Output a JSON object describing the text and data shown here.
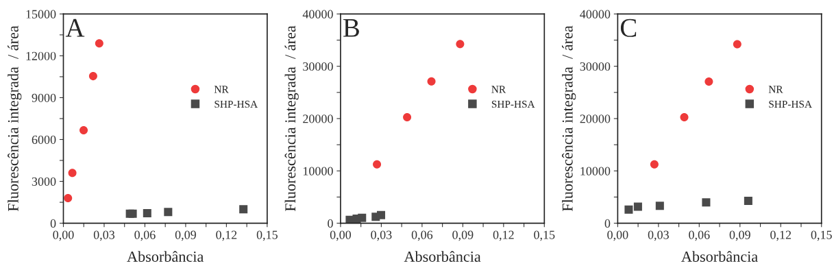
{
  "chart_data": [
    {
      "type": "scatter",
      "xlabel": "Absorbância",
      "ylabel": "Fluorescência integrada  / área",
      "annotations": [
        "A"
      ],
      "legend": "center right",
      "grid": false,
      "xlim": [
        0,
        0.15
      ],
      "xticks": [
        {
          "value": 0,
          "label": "0,00"
        },
        {
          "value": 0.015,
          "label": null
        },
        {
          "value": 0.03,
          "label": "0,03"
        },
        {
          "value": 0.045,
          "label": null
        },
        {
          "value": 0.06,
          "label": "0,06"
        },
        {
          "value": 0.075,
          "label": null
        },
        {
          "value": 0.09,
          "label": "0,09"
        },
        {
          "value": 0.105,
          "label": null
        },
        {
          "value": 0.12,
          "label": "0,12"
        },
        {
          "value": 0.135,
          "label": null
        },
        {
          "value": 0.15,
          "label": "0,15"
        }
      ],
      "ylim": [
        0,
        15000
      ],
      "yticks": [
        0,
        {
          "value": 1500,
          "label": null
        },
        3000,
        {
          "value": 4500,
          "label": null
        },
        6000,
        {
          "value": 7500,
          "label": null
        },
        9000,
        {
          "value": 10500,
          "label": null
        },
        12000,
        {
          "value": 13500,
          "label": null
        },
        15000
      ],
      "series": [
        {
          "name": "NR",
          "color": "#ee3a3a",
          "marker": "circle",
          "x": [
            0.0034,
            0.0066,
            0.0149,
            0.0219,
            0.0264
          ],
          "values": [
            1800,
            3600,
            6660,
            10540,
            12890
          ]
        },
        {
          "name": "SHP-HSA",
          "color": "#4a4a4a",
          "marker": "square",
          "x": [
            0.049,
            0.051,
            0.0617,
            0.0771,
            0.1325
          ],
          "values": [
            680,
            680,
            720,
            800,
            1000
          ]
        }
      ]
    },
    {
      "type": "scatter",
      "xlabel": "Absorbância",
      "ylabel": "Fluorescência integrada  / área",
      "annotations": [
        "B"
      ],
      "legend": "center right",
      "grid": false,
      "xlim": [
        0,
        0.15
      ],
      "xticks": [
        {
          "value": 0,
          "label": "0,00"
        },
        {
          "value": 0.015,
          "label": null
        },
        {
          "value": 0.03,
          "label": "0,03"
        },
        {
          "value": 0.045,
          "label": null
        },
        {
          "value": 0.06,
          "label": "0,06"
        },
        {
          "value": 0.075,
          "label": null
        },
        {
          "value": 0.09,
          "label": "0,09"
        },
        {
          "value": 0.105,
          "label": null
        },
        {
          "value": 0.12,
          "label": "0,12"
        },
        {
          "value": 0.135,
          "label": null
        },
        {
          "value": 0.15,
          "label": "0,15"
        }
      ],
      "ylim": [
        0,
        40000
      ],
      "yticks": [
        0,
        {
          "value": 5000,
          "label": null
        },
        10000,
        {
          "value": 15000,
          "label": null
        },
        20000,
        {
          "value": 25000,
          "label": null
        },
        30000,
        {
          "value": 35000,
          "label": null
        },
        40000
      ],
      "series": [
        {
          "name": "NR",
          "color": "#ee3a3a",
          "marker": "circle",
          "x": [
            0.0268,
            0.049,
            0.0669,
            0.088
          ],
          "values": [
            11240,
            20270,
            27120,
            34260
          ]
        },
        {
          "name": "SHP-HSA",
          "color": "#4a4a4a",
          "marker": "square",
          "x": [
            0.0068,
            0.0119,
            0.0158,
            0.0259,
            0.0298
          ],
          "values": [
            620,
            860,
            1030,
            1230,
            1560
          ]
        }
      ]
    },
    {
      "type": "scatter",
      "xlabel": "Absorbância",
      "ylabel": "Fluorescência integrada  / área",
      "annotations": [
        "C"
      ],
      "legend": "center right",
      "grid": false,
      "xlim": [
        0,
        0.15
      ],
      "xticks": [
        {
          "value": 0,
          "label": "0,00"
        },
        {
          "value": 0.015,
          "label": null
        },
        {
          "value": 0.03,
          "label": "0,03"
        },
        {
          "value": 0.045,
          "label": null
        },
        {
          "value": 0.06,
          "label": "0,06"
        },
        {
          "value": 0.075,
          "label": null
        },
        {
          "value": 0.09,
          "label": "0,09"
        },
        {
          "value": 0.105,
          "label": null
        },
        {
          "value": 0.12,
          "label": "0,12"
        },
        {
          "value": 0.135,
          "label": null
        },
        {
          "value": 0.15,
          "label": "0,15"
        }
      ],
      "ylim": [
        0,
        40000
      ],
      "yticks": [
        0,
        {
          "value": 5000,
          "label": null
        },
        10000,
        {
          "value": 15000,
          "label": null
        },
        20000,
        {
          "value": 25000,
          "label": null
        },
        30000,
        {
          "value": 35000,
          "label": null
        },
        40000
      ],
      "series": [
        {
          "name": "NR",
          "color": "#ee3a3a",
          "marker": "circle",
          "x": [
            0.027,
            0.049,
            0.0671,
            0.088
          ],
          "values": [
            11240,
            20270,
            27080,
            34220
          ]
        },
        {
          "name": "SHP-HSA",
          "color": "#4a4a4a",
          "marker": "square",
          "x": [
            0.0081,
            0.0149,
            0.031,
            0.0651,
            0.0961
          ],
          "values": [
            2590,
            3160,
            3320,
            3980,
            4270
          ]
        }
      ]
    }
  ]
}
